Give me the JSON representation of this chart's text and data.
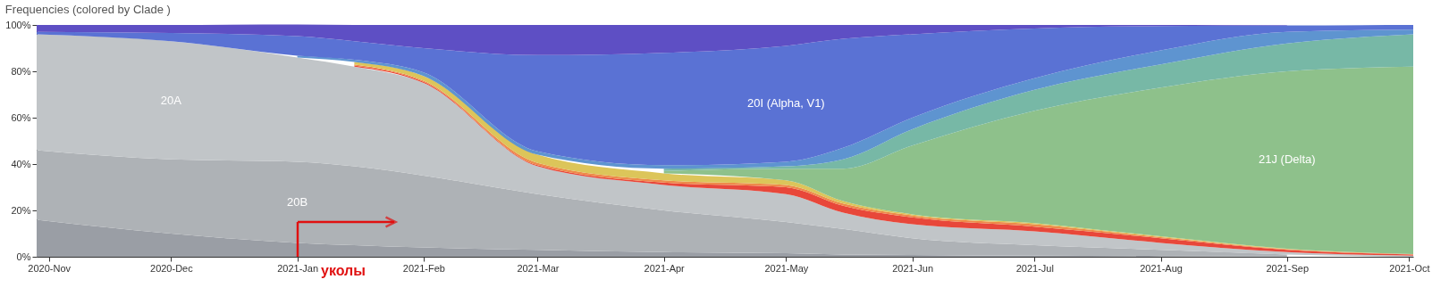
{
  "chart_data": {
    "type": "area",
    "title": "Frequencies (colored by Clade )",
    "stacked": true,
    "x": [
      "2020-10-29",
      "2020-12-01",
      "2021-01-01",
      "2021-01-15",
      "2021-02-01",
      "2021-03-01",
      "2021-04-01",
      "2021-05-01",
      "2021-05-15",
      "2021-06-01",
      "2021-07-01",
      "2021-08-01",
      "2021-09-01",
      "2021-10-02"
    ],
    "series": [
      {
        "color": "#9a9ea5",
        "values": [
          16,
          10,
          6,
          5,
          4,
          3,
          2,
          1.5,
          1,
          0.8,
          0.5,
          0.3,
          0.1,
          null
        ]
      },
      {
        "name": "20B",
        "color": "#aeb2b6",
        "values": [
          30,
          32,
          35,
          34,
          31,
          24,
          18,
          13.5,
          11,
          7.2,
          4.5,
          2.7,
          0.9,
          null
        ]
      },
      {
        "name": "20A",
        "color": "#c1c5c8",
        "values": [
          50,
          51,
          45,
          43,
          40,
          12,
          11,
          12,
          7,
          6,
          6,
          3,
          1,
          0.5
        ]
      },
      {
        "color": "#e8473a",
        "values": [
          null,
          null,
          null,
          0.5,
          0.5,
          0.5,
          1,
          3,
          3,
          3,
          2,
          2,
          1,
          0.5
        ]
      },
      {
        "color": "#ee8a4a",
        "values": [
          null,
          null,
          null,
          0.5,
          0.5,
          1,
          1,
          1,
          1,
          0.8,
          1,
          0.5,
          0.3,
          0.1
        ]
      },
      {
        "color": "#dcc55a",
        "values": [
          null,
          null,
          null,
          1,
          2,
          3.5,
          3,
          2,
          1,
          0.5,
          0.5,
          0.3,
          0.2,
          0.1
        ]
      },
      {
        "name": "21J (Delta)",
        "color": "#8ec18b",
        "values": [
          null,
          null,
          null,
          null,
          null,
          null,
          1,
          5,
          14,
          29.7,
          48.5,
          64.2,
          76.5,
          80.8
        ]
      },
      {
        "color": "#77b8a6",
        "values": [
          null,
          null,
          null,
          null,
          null,
          null,
          1,
          1,
          4,
          7,
          9,
          10,
          12,
          14
        ]
      },
      {
        "color": "#5e94d0",
        "values": [
          null,
          null,
          0.7,
          1,
          1.5,
          1.5,
          1.5,
          2,
          5,
          5,
          5,
          6,
          5,
          2
        ]
      },
      {
        "name": "20I (Alpha, V1)",
        "color": "#5a72d4",
        "values": [
          1,
          3.5,
          8.5,
          8,
          10.5,
          41.5,
          48.5,
          50,
          47,
          36,
          21.5,
          10.5,
          2.8,
          2
        ]
      },
      {
        "color": "#5e4fc4",
        "values": [
          3,
          3.5,
          5,
          7,
          10,
          13,
          12,
          9,
          6,
          4,
          1.5,
          0.5,
          0.2,
          null
        ]
      }
    ],
    "xlim": [
      "2020-10-29",
      "2021-10-02"
    ],
    "xticks": [
      {
        "value": "2020-11-01",
        "label": "2020-Nov"
      },
      {
        "value": "2020-12-01",
        "label": "2020-Dec"
      },
      {
        "value": "2021-01-01",
        "label": "2021-Jan"
      },
      {
        "value": "2021-02-01",
        "label": "2021-Feb"
      },
      {
        "value": "2021-03-01",
        "label": "2021-Mar"
      },
      {
        "value": "2021-04-01",
        "label": "2021-Apr"
      },
      {
        "value": "2021-05-01",
        "label": "2021-May"
      },
      {
        "value": "2021-06-01",
        "label": "2021-Jun"
      },
      {
        "value": "2021-07-01",
        "label": "2021-Jul"
      },
      {
        "value": "2021-08-01",
        "label": "2021-Aug"
      },
      {
        "value": "2021-09-01",
        "label": "2021-Sep"
      },
      {
        "value": "2021-10-01",
        "label": "2021-Oct"
      }
    ],
    "ylim": [
      0,
      100
    ],
    "yticks": [
      {
        "value": 0,
        "label": "0%"
      },
      {
        "value": 20,
        "label": "20%"
      },
      {
        "value": 40,
        "label": "40%"
      },
      {
        "value": 60,
        "label": "60%"
      },
      {
        "value": 80,
        "label": "80%"
      },
      {
        "value": 100,
        "label": "100%"
      }
    ],
    "grid": false,
    "legend": false,
    "annotations": [
      "уколы"
    ]
  }
}
